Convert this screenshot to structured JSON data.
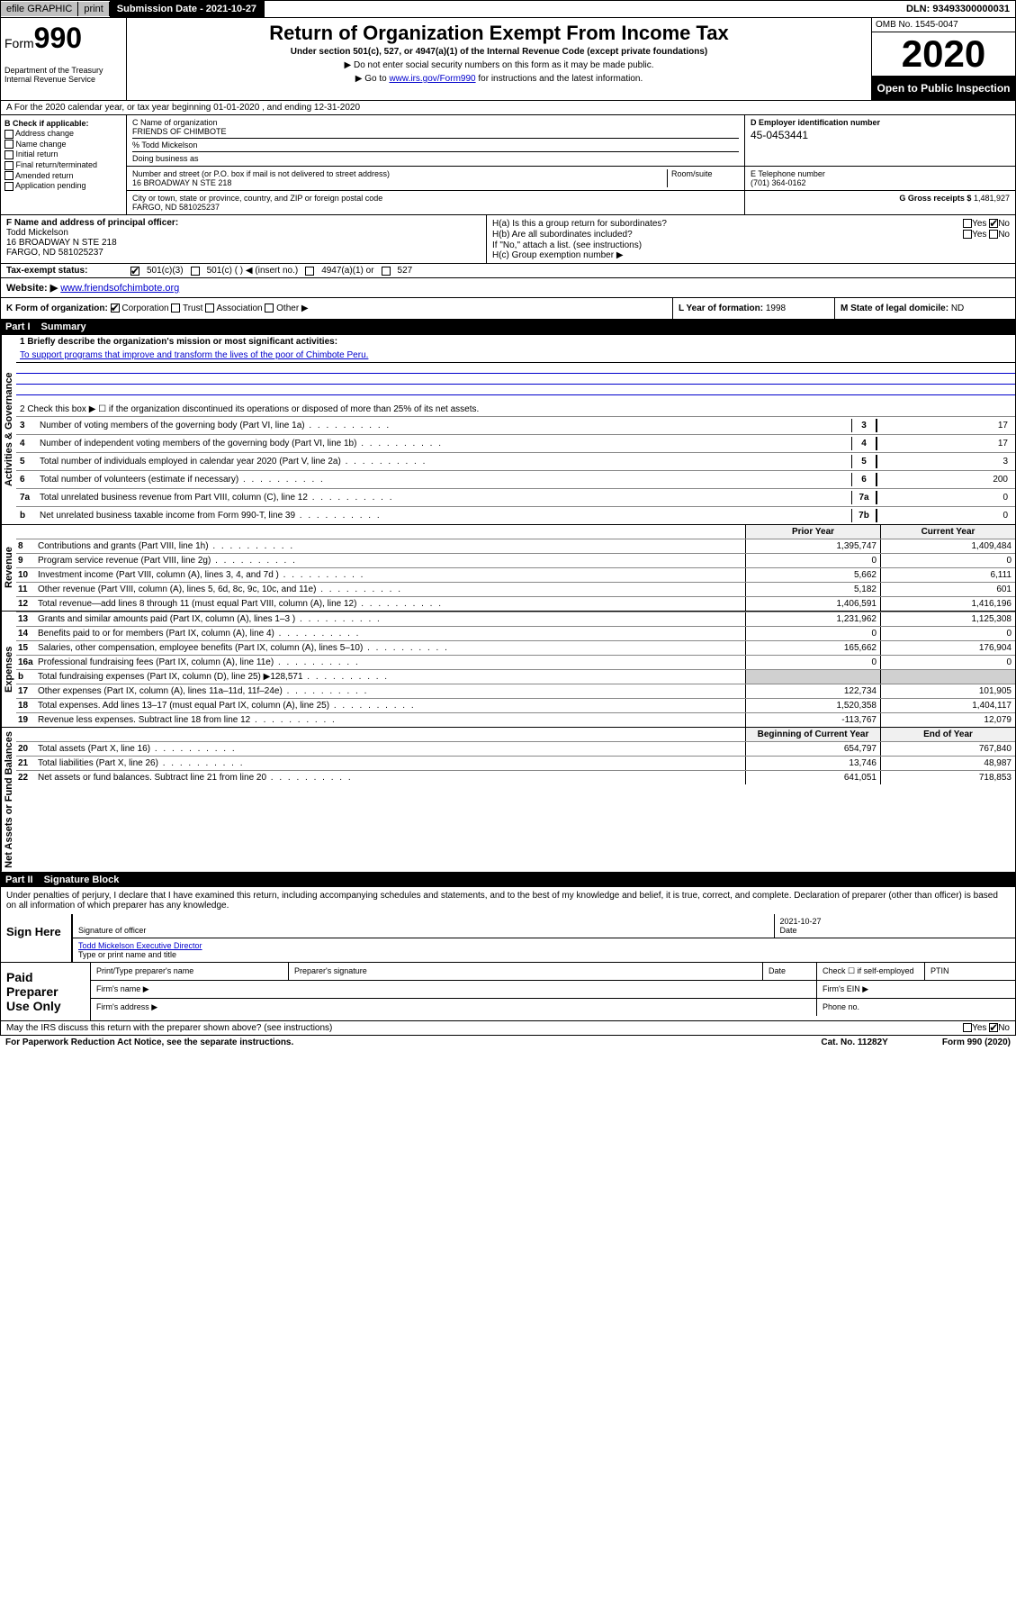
{
  "topbar": {
    "efile": "efile GRAPHIC",
    "print": "print",
    "submission": "Submission Date - 2021-10-27",
    "dln": "DLN: 93493300000031"
  },
  "header": {
    "form_prefix": "Form",
    "form_num": "990",
    "dept": "Department of the Treasury\nInternal Revenue Service",
    "title": "Return of Organization Exempt From Income Tax",
    "subtitle": "Under section 501(c), 527, or 4947(a)(1) of the Internal Revenue Code (except private foundations)",
    "note1": "▶ Do not enter social security numbers on this form as it may be made public.",
    "note2_pre": "▶ Go to ",
    "note2_link": "www.irs.gov/Form990",
    "note2_post": " for instructions and the latest information.",
    "omb": "OMB No. 1545-0047",
    "year": "2020",
    "open_public": "Open to Public Inspection"
  },
  "row_a": "A For the 2020 calendar year, or tax year beginning 01-01-2020    , and ending 12-31-2020",
  "section_b": {
    "header": "B Check if applicable:",
    "items": [
      "Address change",
      "Name change",
      "Initial return",
      "Final return/terminated",
      "Amended return",
      "Application pending"
    ]
  },
  "section_c": {
    "label_name": "C Name of organization",
    "org_name": "FRIENDS OF CHIMBOTE",
    "care_of": "% Todd Mickelson",
    "dba_label": "Doing business as",
    "addr_label": "Number and street (or P.O. box if mail is not delivered to street address)",
    "room_label": "Room/suite",
    "addr": "16 BROADWAY N STE 218",
    "city_label": "City or town, state or province, country, and ZIP or foreign postal code",
    "city": "FARGO, ND  581025237"
  },
  "section_d": {
    "label": "D Employer identification number",
    "ein": "45-0453441"
  },
  "section_e": {
    "label": "E Telephone number",
    "phone": "(701) 364-0162"
  },
  "section_g": {
    "label": "G Gross receipts $",
    "amount": "1,481,927"
  },
  "section_f": {
    "label": "F Name and address of principal officer:",
    "name": "Todd Mickelson",
    "addr1": "16 BROADWAY N STE 218",
    "addr2": "FARGO, ND  581025237"
  },
  "section_h": {
    "ha": "H(a)  Is this a group return for subordinates?",
    "hb": "H(b)  Are all subordinates included?",
    "hb_note": "If \"No,\" attach a list. (see instructions)",
    "hc": "H(c)  Group exemption number ▶",
    "yes": "Yes",
    "no": "No"
  },
  "tax_status": {
    "label": "Tax-exempt status:",
    "opt1": "501(c)(3)",
    "opt2": "501(c) (   ) ◀ (insert no.)",
    "opt3": "4947(a)(1) or",
    "opt4": "527"
  },
  "row_j": {
    "label": "Website: ▶",
    "url": "www.friendsofchimbote.org"
  },
  "row_k": {
    "label": "K Form of organization:",
    "corp": "Corporation",
    "trust": "Trust",
    "assoc": "Association",
    "other": "Other ▶"
  },
  "row_l": {
    "label": "L Year of formation:",
    "val": "1998"
  },
  "row_m": {
    "label": "M State of legal domicile:",
    "val": "ND"
  },
  "part1": {
    "header_num": "Part I",
    "header_title": "Summary",
    "vlabel_gov": "Activities & Governance",
    "vlabel_rev": "Revenue",
    "vlabel_exp": "Expenses",
    "vlabel_net": "Net Assets or Fund Balances",
    "line1_label": "1  Briefly describe the organization's mission or most significant activities:",
    "mission": "To support programs that improve and transform the lives of the poor of Chimbote Peru.",
    "line2": "2   Check this box ▶ ☐  if the organization discontinued its operations or disposed of more than 25% of its net assets.",
    "lines_simple": [
      {
        "n": "3",
        "txt": "Number of voting members of the governing body (Part VI, line 1a)",
        "box": "3",
        "val": "17"
      },
      {
        "n": "4",
        "txt": "Number of independent voting members of the governing body (Part VI, line 1b)",
        "box": "4",
        "val": "17"
      },
      {
        "n": "5",
        "txt": "Total number of individuals employed in calendar year 2020 (Part V, line 2a)",
        "box": "5",
        "val": "3"
      },
      {
        "n": "6",
        "txt": "Total number of volunteers (estimate if necessary)",
        "box": "6",
        "val": "200"
      },
      {
        "n": "7a",
        "txt": "Total unrelated business revenue from Part VIII, column (C), line 12",
        "box": "7a",
        "val": "0"
      },
      {
        "n": "b",
        "txt": "Net unrelated business taxable income from Form 990-T, line 39",
        "box": "7b",
        "val": "0"
      }
    ],
    "col_prior": "Prior Year",
    "col_current": "Current Year",
    "revenue": [
      {
        "n": "8",
        "txt": "Contributions and grants (Part VIII, line 1h)",
        "c1": "1,395,747",
        "c2": "1,409,484"
      },
      {
        "n": "9",
        "txt": "Program service revenue (Part VIII, line 2g)",
        "c1": "0",
        "c2": "0"
      },
      {
        "n": "10",
        "txt": "Investment income (Part VIII, column (A), lines 3, 4, and 7d )",
        "c1": "5,662",
        "c2": "6,111"
      },
      {
        "n": "11",
        "txt": "Other revenue (Part VIII, column (A), lines 5, 6d, 8c, 9c, 10c, and 11e)",
        "c1": "5,182",
        "c2": "601"
      },
      {
        "n": "12",
        "txt": "Total revenue—add lines 8 through 11 (must equal Part VIII, column (A), line 12)",
        "c1": "1,406,591",
        "c2": "1,416,196"
      }
    ],
    "expenses": [
      {
        "n": "13",
        "txt": "Grants and similar amounts paid (Part IX, column (A), lines 1–3 )",
        "c1": "1,231,962",
        "c2": "1,125,308"
      },
      {
        "n": "14",
        "txt": "Benefits paid to or for members (Part IX, column (A), line 4)",
        "c1": "0",
        "c2": "0"
      },
      {
        "n": "15",
        "txt": "Salaries, other compensation, employee benefits (Part IX, column (A), lines 5–10)",
        "c1": "165,662",
        "c2": "176,904"
      },
      {
        "n": "16a",
        "txt": "Professional fundraising fees (Part IX, column (A), line 11e)",
        "c1": "0",
        "c2": "0"
      },
      {
        "n": "b",
        "txt": "Total fundraising expenses (Part IX, column (D), line 25) ▶128,571",
        "c1": "",
        "c2": "",
        "shaded": true
      },
      {
        "n": "17",
        "txt": "Other expenses (Part IX, column (A), lines 11a–11d, 11f–24e)",
        "c1": "122,734",
        "c2": "101,905"
      },
      {
        "n": "18",
        "txt": "Total expenses. Add lines 13–17 (must equal Part IX, column (A), line 25)",
        "c1": "1,520,358",
        "c2": "1,404,117"
      },
      {
        "n": "19",
        "txt": "Revenue less expenses. Subtract line 18 from line 12",
        "c1": "-113,767",
        "c2": "12,079"
      }
    ],
    "col_begin": "Beginning of Current Year",
    "col_end": "End of Year",
    "net": [
      {
        "n": "20",
        "txt": "Total assets (Part X, line 16)",
        "c1": "654,797",
        "c2": "767,840"
      },
      {
        "n": "21",
        "txt": "Total liabilities (Part X, line 26)",
        "c1": "13,746",
        "c2": "48,987"
      },
      {
        "n": "22",
        "txt": "Net assets or fund balances. Subtract line 21 from line 20",
        "c1": "641,051",
        "c2": "718,853"
      }
    ]
  },
  "part2": {
    "header_num": "Part II",
    "header_title": "Signature Block",
    "perjury": "Under penalties of perjury, I declare that I have examined this return, including accompanying schedules and statements, and to the best of my knowledge and belief, it is true, correct, and complete. Declaration of preparer (other than officer) is based on all information of which preparer has any knowledge.",
    "sign_here": "Sign Here",
    "sig_officer": "Signature of officer",
    "date": "Date",
    "sig_date": "2021-10-27",
    "name_title": "Todd Mickelson  Executive Director",
    "type_name": "Type or print name and title",
    "paid": "Paid Preparer Use Only",
    "prep_name": "Print/Type preparer's name",
    "prep_sig": "Preparer's signature",
    "prep_date": "Date",
    "self_emp": "Check ☐ if self-employed",
    "ptin": "PTIN",
    "firm_name": "Firm's name   ▶",
    "firm_ein": "Firm's EIN ▶",
    "firm_addr": "Firm's address ▶",
    "phone": "Phone no.",
    "discuss": "May the IRS discuss this return with the preparer shown above? (see instructions)",
    "yes": "Yes",
    "no": "No"
  },
  "footer": {
    "left": "For Paperwork Reduction Act Notice, see the separate instructions.",
    "mid": "Cat. No. 11282Y",
    "right": "Form 990 (2020)"
  }
}
